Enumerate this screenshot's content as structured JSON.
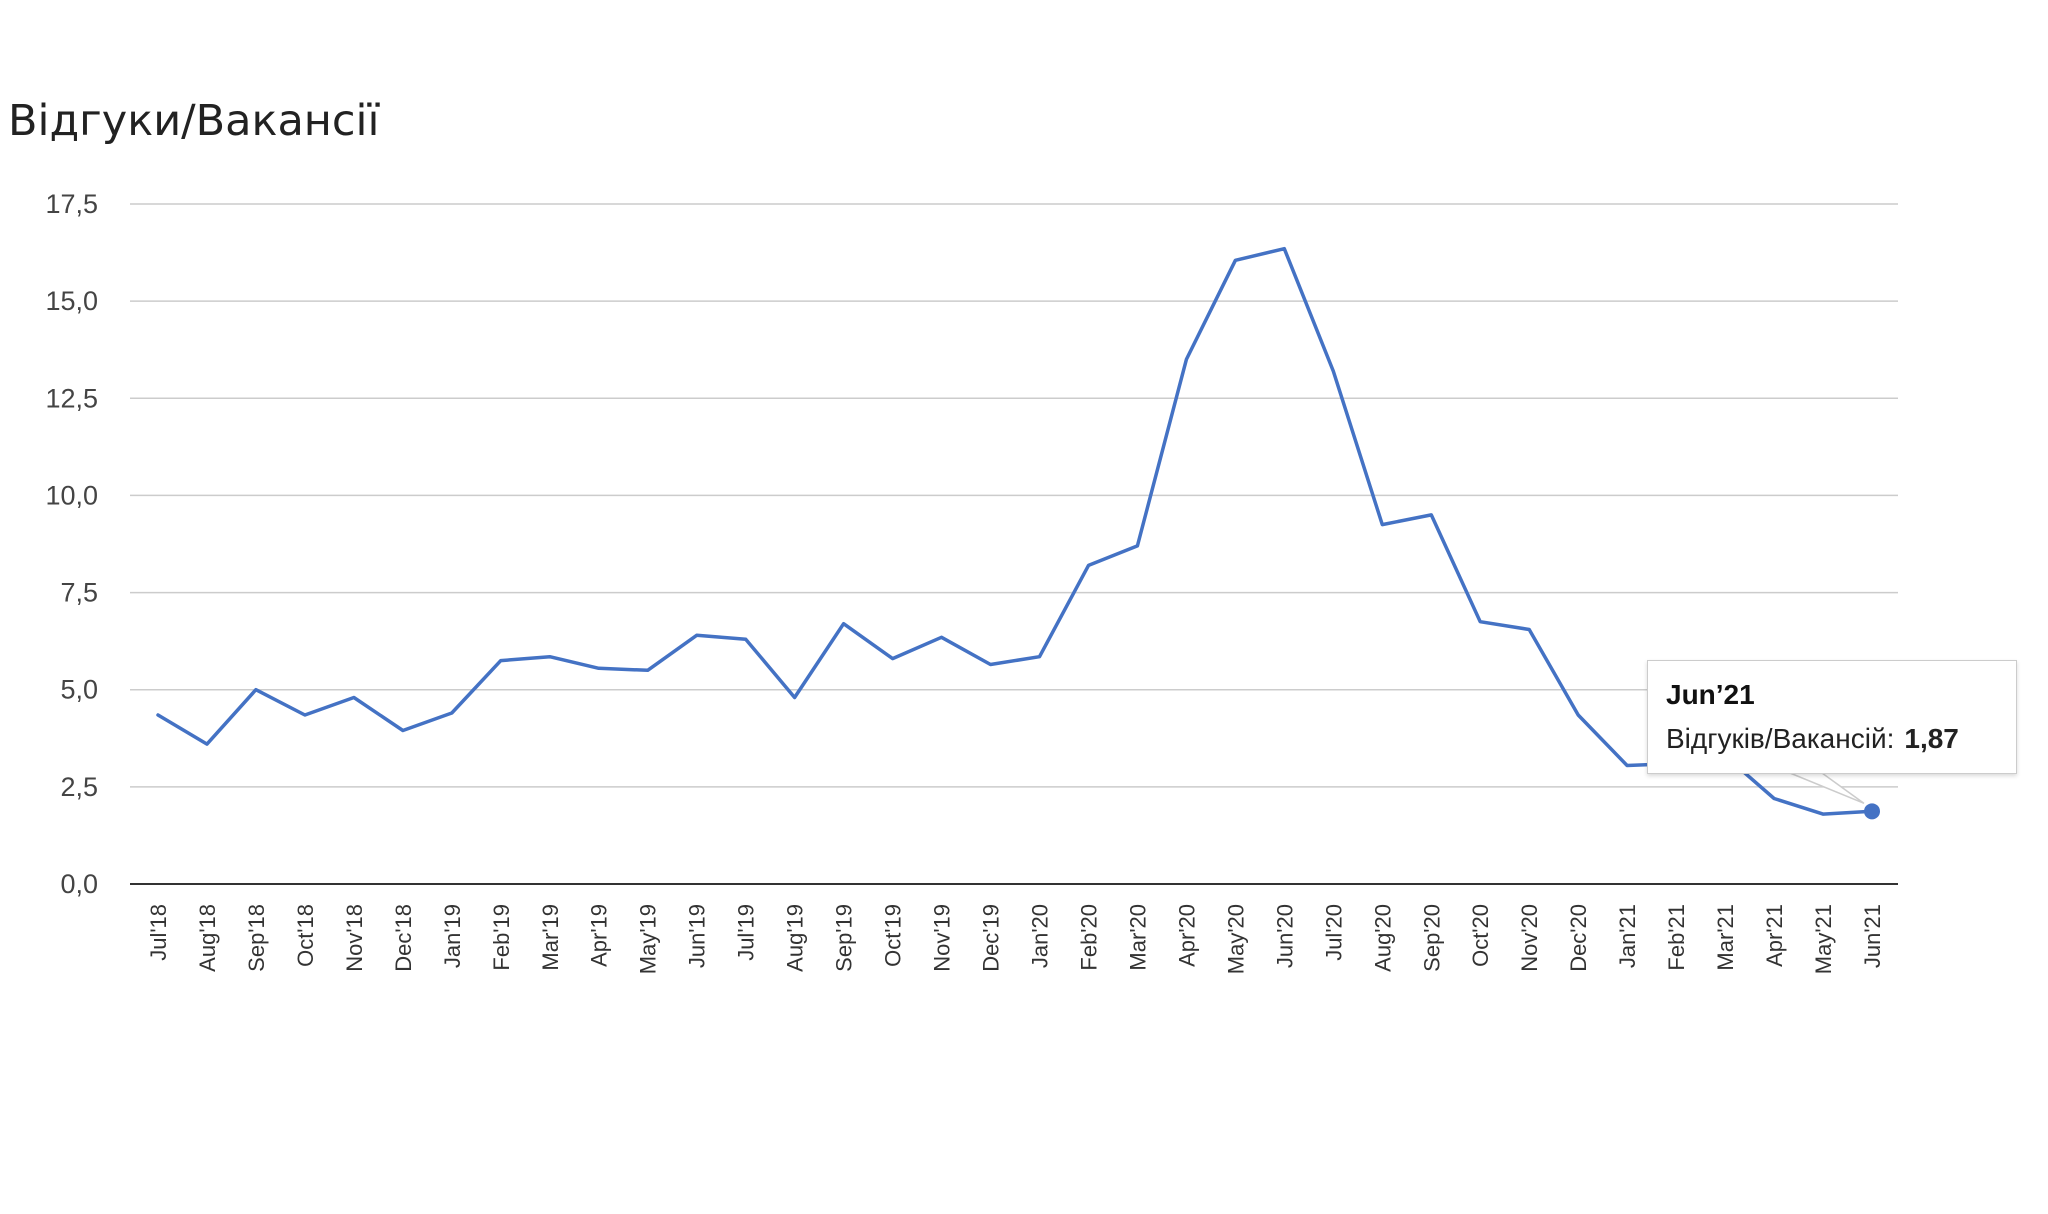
{
  "chart_data": {
    "type": "line",
    "title": "Відгуки/Вакансії",
    "xlabel": "",
    "ylabel": "",
    "ylim": [
      0,
      17.5
    ],
    "yticks": [
      "0,0",
      "2,5",
      "5,0",
      "7,5",
      "10,0",
      "12,5",
      "15,0",
      "17,5"
    ],
    "grid": true,
    "legend": "none",
    "categories": [
      "Jul'18",
      "Aug'18",
      "Sep'18",
      "Oct'18",
      "Nov'18",
      "Dec'18",
      "Jan'19",
      "Feb'19",
      "Mar'19",
      "Apr'19",
      "May'19",
      "Jun'19",
      "Jul'19",
      "Aug'19",
      "Sep'19",
      "Oct'19",
      "Nov'19",
      "Dec'19",
      "Jan'20",
      "Feb'20",
      "Mar'20",
      "Apr'20",
      "May'20",
      "Jun'20",
      "Jul'20",
      "Aug'20",
      "Sep'20",
      "Oct'20",
      "Nov'20",
      "Dec'20",
      "Jan'21",
      "Feb'21",
      "Mar'21",
      "Apr'21",
      "May'21",
      "Jun'21"
    ],
    "series": [
      {
        "color": "#4472c4",
        "values": [
          4.35,
          3.6,
          5.0,
          4.35,
          4.8,
          3.95,
          4.4,
          5.75,
          5.85,
          5.55,
          5.5,
          6.4,
          6.3,
          4.8,
          6.7,
          5.8,
          6.35,
          5.65,
          5.85,
          8.2,
          8.7,
          13.5,
          16.05,
          16.35,
          13.2,
          9.25,
          9.5,
          6.75,
          6.55,
          4.35,
          3.05,
          3.1,
          3.3,
          2.2,
          1.8,
          1.87
        ]
      }
    ]
  },
  "tooltip": {
    "title": "Jun’21",
    "label": "Відгуків/Вакансій:",
    "value": "1,87"
  }
}
